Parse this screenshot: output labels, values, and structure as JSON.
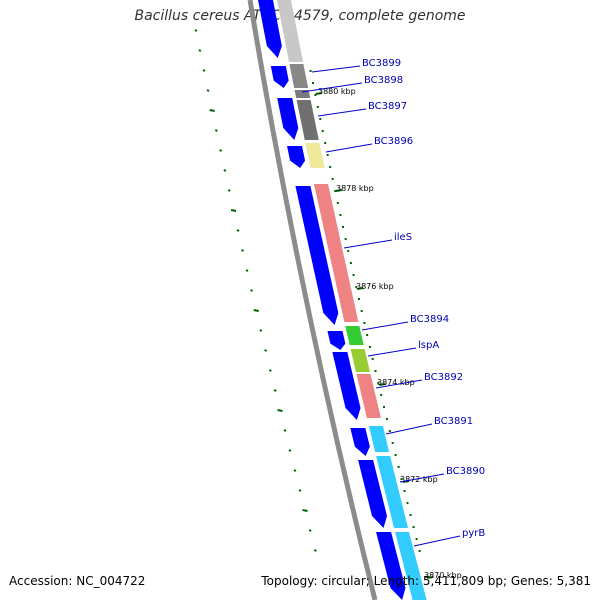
{
  "title": "Bacillus cereus ATCC 14579, complete genome",
  "footer": {
    "accession": "Accession: NC_004722",
    "info": "Topology: circular; Length: 5,411,809 bp; Genes: 5,381"
  },
  "colors": {
    "strand": "#0000ff",
    "label": "#0000b3",
    "tick": "#006600",
    "backbone": "#8c8c8c",
    "gray": "#888888",
    "yellow": "#eeea9a",
    "salmon": "#ef8282",
    "green": "#33cc33",
    "olive": "#99cc33",
    "cyan": "#33ccff"
  },
  "genes": [
    {
      "label": "BC3899"
    },
    {
      "label": "BC3898"
    },
    {
      "label": "BC3897"
    },
    {
      "label": "BC3896"
    },
    {
      "label": "ileS"
    },
    {
      "label": "BC3894"
    },
    {
      "label": "lspA"
    },
    {
      "label": "BC3892"
    },
    {
      "label": "BC3891"
    },
    {
      "label": "BC3890"
    },
    {
      "label": "pyrB"
    }
  ],
  "kbp_marks": [
    "3880 kbp",
    "3878 kbp",
    "3876 kbp",
    "3874 kbp",
    "3872 kbp",
    "3870 kbp"
  ]
}
